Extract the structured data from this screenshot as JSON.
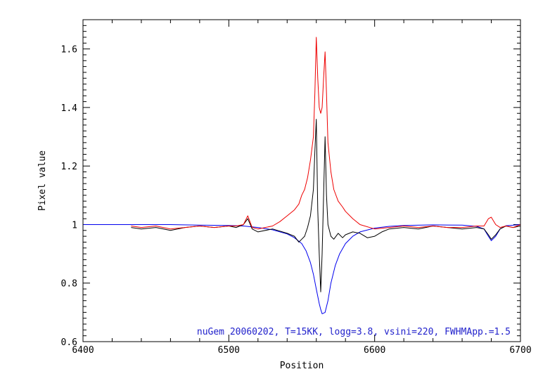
{
  "chart_data": {
    "type": "line",
    "xlabel": "Position",
    "ylabel": "Pixel value",
    "xlim": [
      6400,
      6700
    ],
    "ylim": [
      0.6,
      1.7
    ],
    "x_ticks": [
      6400,
      6500,
      6600,
      6700
    ],
    "x_tick_labels": [
      "6400",
      "6500",
      "6600",
      "6700"
    ],
    "y_ticks": [
      0.6,
      0.8,
      1.0,
      1.2,
      1.4,
      1.6
    ],
    "y_tick_labels": [
      "0.6",
      "0.8",
      "1",
      "1.2",
      "1.4",
      "1.6"
    ],
    "annotation": {
      "text": "nuGem 20060202, T=15KK, logg=3.8, vsini=220, FWHMApp.=1.5",
      "color": "#2222cc"
    },
    "grid": false,
    "series": [
      {
        "color": "#0000ee",
        "x": [
          6400,
          6430,
          6460,
          6480,
          6500,
          6510,
          6520,
          6530,
          6540,
          6545,
          6550,
          6553,
          6556,
          6558,
          6560,
          6562,
          6563,
          6564,
          6566,
          6568,
          6570,
          6573,
          6576,
          6580,
          6585,
          6590,
          6600,
          6610,
          6620,
          6640,
          6660,
          6670,
          6675,
          6678,
          6680,
          6683,
          6686,
          6690,
          6700
        ],
        "y": [
          1.0,
          1.0,
          1.0,
          0.998,
          0.997,
          0.995,
          0.99,
          0.982,
          0.968,
          0.955,
          0.935,
          0.91,
          0.87,
          0.83,
          0.78,
          0.73,
          0.71,
          0.695,
          0.7,
          0.74,
          0.8,
          0.86,
          0.9,
          0.935,
          0.96,
          0.975,
          0.988,
          0.994,
          0.997,
          0.999,
          0.998,
          0.994,
          0.985,
          0.96,
          0.945,
          0.96,
          0.985,
          0.996,
          1.0
        ]
      },
      {
        "color": "#000000",
        "x": [
          6433,
          6440,
          6450,
          6460,
          6470,
          6480,
          6490,
          6500,
          6505,
          6510,
          6513,
          6516,
          6520,
          6530,
          6540,
          6545,
          6548,
          6550,
          6552,
          6554,
          6556,
          6558,
          6559,
          6560,
          6561,
          6562,
          6563,
          6564,
          6565,
          6566,
          6567,
          6568,
          6570,
          6572,
          6575,
          6578,
          6580,
          6585,
          6590,
          6595,
          6600,
          6605,
          6610,
          6620,
          6630,
          6640,
          6650,
          6660,
          6670,
          6675,
          6678,
          6680,
          6683,
          6686,
          6690,
          6695,
          6700
        ],
        "y": [
          0.99,
          0.985,
          0.99,
          0.98,
          0.99,
          0.995,
          0.99,
          0.995,
          0.99,
          1.0,
          1.02,
          0.985,
          0.975,
          0.985,
          0.97,
          0.96,
          0.94,
          0.95,
          0.96,
          0.99,
          1.03,
          1.12,
          1.25,
          1.36,
          1.05,
          0.9,
          0.77,
          0.9,
          1.1,
          1.3,
          1.1,
          1.0,
          0.96,
          0.95,
          0.97,
          0.955,
          0.965,
          0.975,
          0.97,
          0.955,
          0.96,
          0.975,
          0.985,
          0.99,
          0.985,
          0.995,
          0.99,
          0.985,
          0.99,
          0.985,
          0.965,
          0.95,
          0.965,
          0.985,
          0.995,
          0.99,
          0.995
        ]
      },
      {
        "color": "#ee0000",
        "x": [
          6433,
          6440,
          6450,
          6460,
          6470,
          6480,
          6490,
          6500,
          6505,
          6510,
          6513,
          6516,
          6520,
          6530,
          6535,
          6540,
          6545,
          6548,
          6550,
          6552,
          6554,
          6556,
          6558,
          6559,
          6560,
          6561,
          6562,
          6563,
          6564,
          6565,
          6566,
          6567,
          6568,
          6570,
          6572,
          6575,
          6578,
          6580,
          6585,
          6590,
          6600,
          6610,
          6620,
          6630,
          6640,
          6650,
          6660,
          6670,
          6675,
          6678,
          6680,
          6683,
          6686,
          6690,
          6695,
          6700
        ],
        "y": [
          0.995,
          0.99,
          0.995,
          0.985,
          0.99,
          0.995,
          0.99,
          0.995,
          0.995,
          1.0,
          1.03,
          0.99,
          0.985,
          0.995,
          1.01,
          1.03,
          1.05,
          1.07,
          1.1,
          1.12,
          1.16,
          1.22,
          1.3,
          1.45,
          1.64,
          1.5,
          1.4,
          1.38,
          1.4,
          1.5,
          1.59,
          1.45,
          1.28,
          1.18,
          1.12,
          1.08,
          1.06,
          1.045,
          1.02,
          1.0,
          0.985,
          0.99,
          0.995,
          0.99,
          0.995,
          0.99,
          0.99,
          0.995,
          0.995,
          1.02,
          1.025,
          1.0,
          0.99,
          0.995,
          0.99,
          1.0
        ]
      }
    ]
  }
}
